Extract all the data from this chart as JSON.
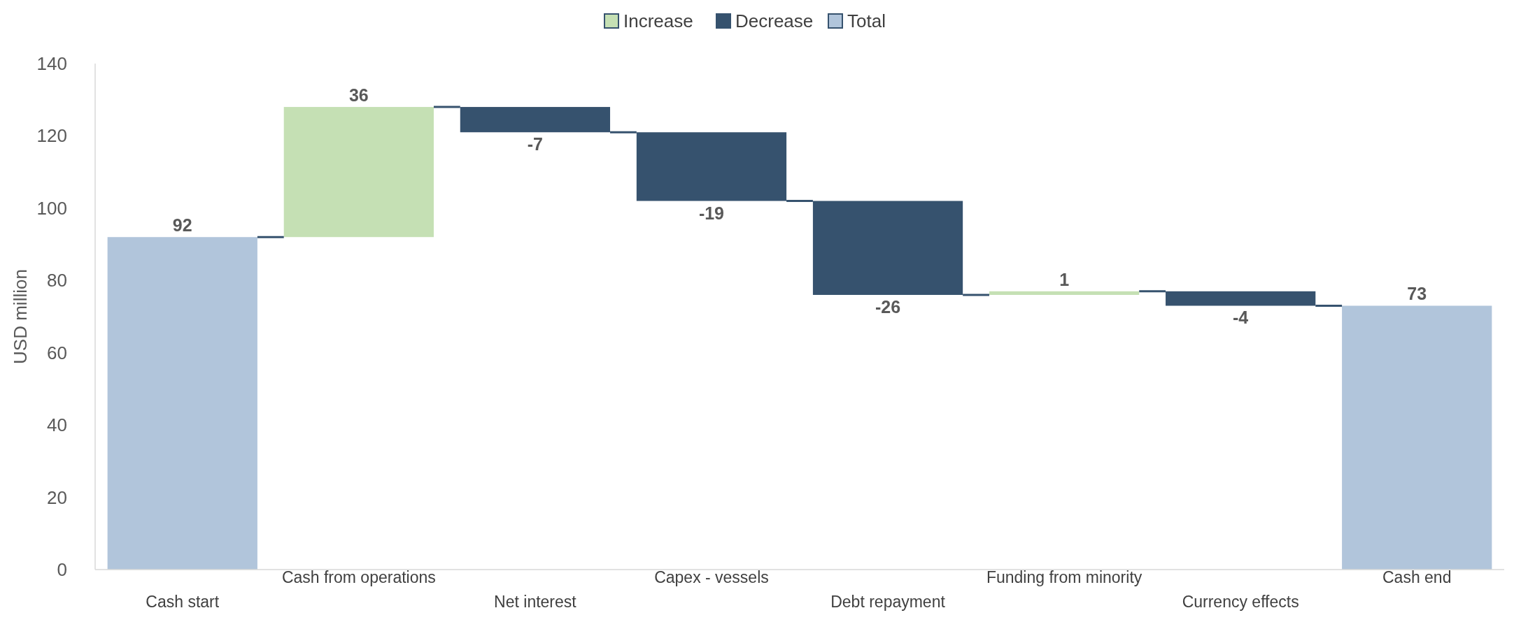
{
  "chart_data": {
    "type": "bar",
    "ylabel": "USD million",
    "categories": [
      "Cash start",
      "Cash from operations",
      "Net interest",
      "Capex - vessels",
      "Debt repayment",
      "Funding from minority",
      "Currency effects",
      "Cash end"
    ],
    "series": [
      {
        "name": "Increase",
        "color": "#c5e0b4",
        "values": [
          null,
          36,
          null,
          null,
          null,
          1,
          null,
          null
        ],
        "base": [
          null,
          92,
          null,
          null,
          null,
          76,
          null,
          null
        ]
      },
      {
        "name": "Decrease",
        "color": "#36526e",
        "values": [
          null,
          null,
          -7,
          -19,
          -26,
          null,
          -4,
          null
        ],
        "base": [
          null,
          null,
          128,
          121,
          102,
          null,
          77,
          null
        ]
      },
      {
        "name": "Total",
        "color": "#b1c5db",
        "values": [
          92,
          null,
          null,
          null,
          null,
          null,
          null,
          73
        ],
        "base": [
          0,
          null,
          null,
          null,
          null,
          null,
          null,
          0
        ]
      }
    ],
    "ylim": [
      0,
      140
    ],
    "yticks": [
      0,
      20,
      40,
      60,
      80,
      100,
      120,
      140
    ],
    "data_labels": true,
    "legend": "top",
    "grid": false
  }
}
